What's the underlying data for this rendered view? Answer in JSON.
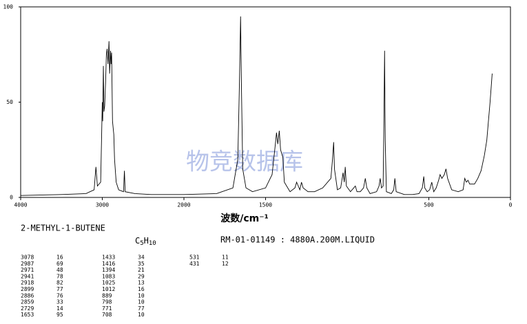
{
  "chart_data": {
    "type": "line",
    "title": "2-METHYL-1-BUTENE",
    "formula": [
      "C",
      "5",
      "H",
      "10"
    ],
    "sample_info": "RM-01-01149 : 4880A.200M.LIQUID",
    "x_label": "波数/cm⁻¹",
    "watermark": "物竞数据库",
    "xlim": [
      4000,
      0
    ],
    "xticks": [
      4000,
      3000,
      2000,
      1500,
      500,
      0
    ],
    "x_scale_break": 2000,
    "ylim": [
      0,
      100
    ],
    "yticks": [
      0,
      50,
      100
    ],
    "color": "#000000",
    "x": [
      4000,
      3500,
      3200,
      3100,
      3078,
      3060,
      3020,
      3000,
      2995,
      2987,
      2980,
      2971,
      2960,
      2950,
      2941,
      2930,
      2918,
      2910,
      2899,
      2892,
      2886,
      2875,
      2859,
      2850,
      2830,
      2800,
      2740,
      2729,
      2720,
      2600,
      2400,
      2200,
      2000,
      1800,
      1700,
      1670,
      1660,
      1653,
      1648,
      1640,
      1620,
      1580,
      1500,
      1460,
      1440,
      1433,
      1425,
      1416,
      1408,
      1394,
      1385,
      1350,
      1320,
      1310,
      1300,
      1290,
      1280,
      1270,
      1240,
      1200,
      1150,
      1100,
      1090,
      1083,
      1078,
      1060,
      1040,
      1025,
      1018,
      1012,
      1005,
      980,
      960,
      950,
      940,
      920,
      900,
      889,
      880,
      860,
      820,
      805,
      798,
      790,
      780,
      775,
      771,
      767,
      760,
      730,
      715,
      708,
      700,
      650,
      600,
      560,
      540,
      531,
      525,
      510,
      495,
      482,
      470,
      455,
      440,
      431,
      420,
      405,
      395,
      385,
      360,
      320,
      290,
      280,
      270,
      260,
      250,
      220,
      200,
      180,
      160,
      145,
      135,
      125,
      118,
      112
    ],
    "values": [
      1,
      1.5,
      2,
      4,
      16,
      6,
      8,
      50,
      40,
      69,
      45,
      48,
      60,
      75,
      78,
      70,
      82,
      65,
      77,
      70,
      76,
      40,
      33,
      20,
      8,
      4,
      3,
      14,
      3,
      2,
      1.5,
      1.5,
      1.5,
      2,
      5,
      20,
      60,
      95,
      60,
      15,
      5,
      3,
      5,
      12,
      28,
      34,
      28,
      35,
      25,
      21,
      8,
      3,
      5,
      8,
      6,
      4,
      8,
      5,
      3,
      3,
      5,
      10,
      20,
      29,
      15,
      4,
      5,
      13,
      8,
      16,
      6,
      3,
      5,
      6,
      3,
      3,
      5,
      10,
      5,
      2,
      3,
      6,
      10,
      5,
      6,
      40,
      77,
      30,
      3,
      2,
      4,
      10,
      3,
      1.5,
      1.5,
      2,
      5,
      11,
      5,
      3,
      4,
      8,
      3,
      5,
      9,
      12,
      10,
      12,
      15,
      10,
      4,
      3,
      4,
      10,
      8,
      9,
      7,
      7,
      10,
      14,
      22,
      30,
      40,
      50,
      58,
      65
    ],
    "peaks": [
      [
        3078,
        16
      ],
      [
        2987,
        69
      ],
      [
        2971,
        48
      ],
      [
        2941,
        78
      ],
      [
        2918,
        82
      ],
      [
        2899,
        77
      ],
      [
        2886,
        76
      ],
      [
        2859,
        33
      ],
      [
        2729,
        14
      ],
      [
        1653,
        95
      ],
      [
        1433,
        34
      ],
      [
        1416,
        35
      ],
      [
        1394,
        21
      ],
      [
        1083,
        29
      ],
      [
        1025,
        13
      ],
      [
        1012,
        16
      ],
      [
        889,
        10
      ],
      [
        798,
        10
      ],
      [
        771,
        77
      ],
      [
        708,
        10
      ],
      [
        531,
        11
      ],
      [
        431,
        12
      ]
    ]
  }
}
